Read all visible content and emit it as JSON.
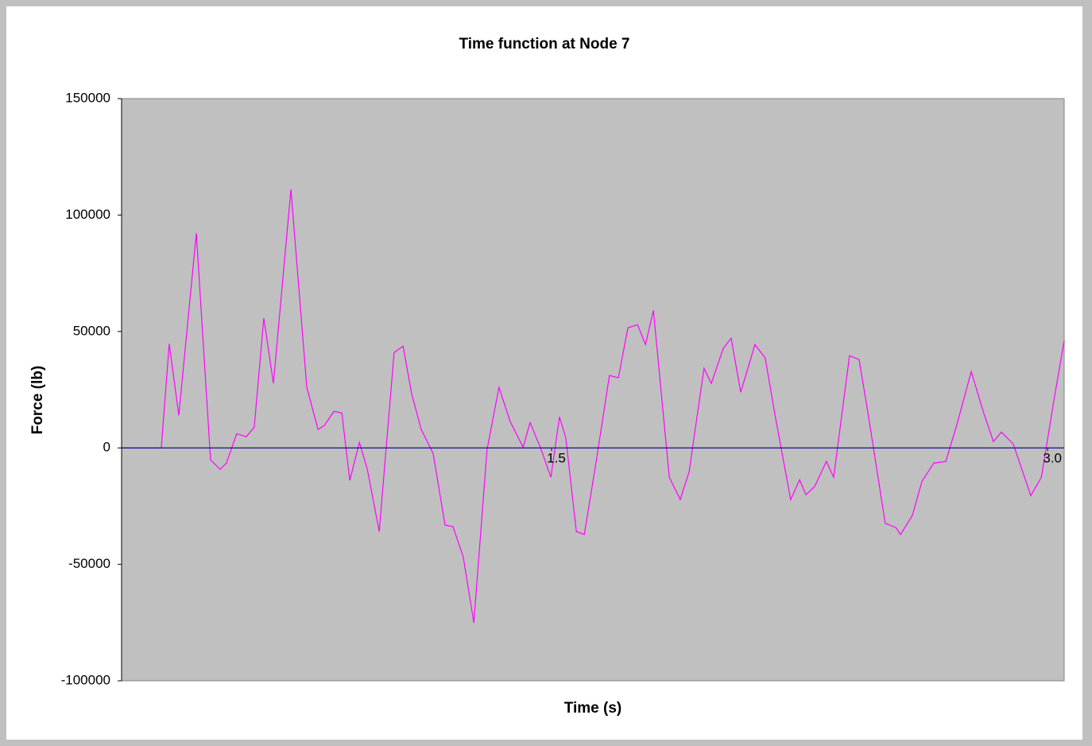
{
  "chart_data": {
    "type": "line",
    "title": "Time function at Node 7",
    "x_label": "Time (s)",
    "y_label": "Force (lb)",
    "x": [
      0.2,
      0.32,
      0.344,
      0.373,
      0.426,
      0.469,
      0.498,
      0.517,
      0.548,
      0.577,
      0.601,
      0.63,
      0.659,
      0.712,
      0.76,
      0.794,
      0.813,
      0.842,
      0.866,
      0.89,
      0.919,
      0.943,
      0.979,
      1.024,
      1.051,
      1.077,
      1.106,
      1.142,
      1.178,
      1.202,
      1.233,
      1.265,
      1.305,
      1.341,
      1.375,
      1.414,
      1.435,
      1.466,
      1.498,
      1.524,
      1.543,
      1.575,
      1.599,
      1.635,
      1.675,
      1.702,
      1.731,
      1.76,
      1.784,
      1.808,
      1.856,
      1.889,
      1.916,
      1.961,
      1.983,
      2.019,
      2.043,
      2.072,
      2.115,
      2.146,
      2.175,
      2.223,
      2.25,
      2.269,
      2.295,
      2.331,
      2.353,
      2.401,
      2.43,
      2.456,
      2.509,
      2.541,
      2.555,
      2.591,
      2.62,
      2.656,
      2.692,
      2.726,
      2.769,
      2.805,
      2.836,
      2.86,
      2.896,
      2.949,
      2.981,
      3.017,
      3.05
    ],
    "series": [
      {
        "name": "Force",
        "color": "#ff00ff",
        "values": [
          0,
          0,
          44700,
          14000,
          92200,
          -5100,
          -9200,
          -6500,
          6100,
          4800,
          8900,
          55700,
          27700,
          111000,
          26000,
          7900,
          9600,
          15700,
          15000,
          -14000,
          2400,
          -9200,
          -35900,
          41000,
          43700,
          23200,
          7900,
          -2400,
          -33100,
          -33800,
          -46800,
          -75100,
          -700,
          26000,
          11300,
          300,
          10900,
          300,
          -12600,
          13300,
          4400,
          -35900,
          -37200,
          -5800,
          31100,
          30100,
          51600,
          52900,
          44400,
          59100,
          -12600,
          -22200,
          -10200,
          34200,
          27700,
          42700,
          47100,
          23900,
          44400,
          38600,
          14700,
          -22200,
          -13700,
          -20100,
          -16700,
          -5800,
          -12600,
          39600,
          37900,
          15700,
          -32400,
          -34200,
          -37200,
          -29000,
          -14300,
          -6500,
          -5800,
          10200,
          32800,
          15700,
          2700,
          6800,
          1700,
          -20500,
          -12600,
          18800,
          46100
        ]
      }
    ],
    "xlim": [
      0.2,
      3.05
    ],
    "xticks": [
      1.5,
      {
        "value": 3.0,
        "label": "3.0"
      }
    ],
    "ylim": [
      -100000,
      150000
    ],
    "yticks": [
      -100000,
      -50000,
      0,
      50000,
      100000,
      150000
    ],
    "axis_color": "#000080",
    "plot_background": "#c0c0c0"
  }
}
